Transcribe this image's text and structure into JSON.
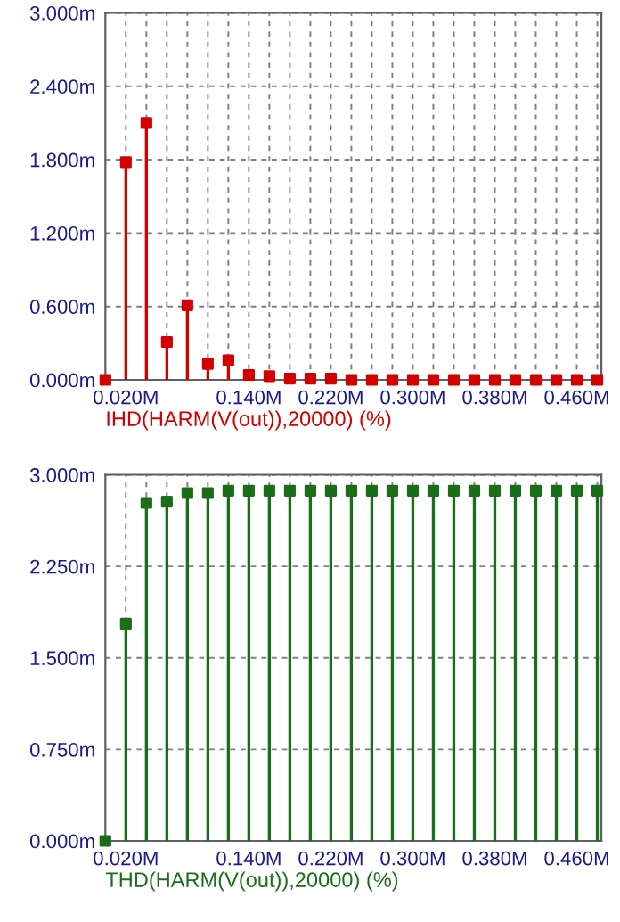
{
  "chart_data": [
    {
      "type": "lollipop",
      "xlabel": "IHD(HARM(V(out)),20000) (%)",
      "x": [
        0,
        0.02,
        0.04,
        0.06,
        0.08,
        0.1,
        0.12,
        0.14,
        0.16,
        0.18,
        0.2,
        0.22,
        0.24,
        0.26,
        0.28,
        0.3,
        0.32,
        0.34,
        0.36,
        0.38,
        0.4,
        0.42,
        0.44,
        0.46,
        0.48
      ],
      "series": [
        {
          "color": "#d40000",
          "values": [
            0,
            1.78,
            2.1,
            0.31,
            0.61,
            0.13,
            0.16,
            0.04,
            0.03,
            0.01,
            0.01,
            0.01,
            0,
            0,
            0,
            0,
            0,
            0,
            0,
            0,
            0,
            0,
            0,
            0,
            0
          ]
        }
      ],
      "marker": "square",
      "grid": true,
      "xlim": [
        0,
        0.484
      ],
      "ylim": [
        0,
        3
      ],
      "xticks": [
        {
          "value": 0.02,
          "label": "0.020M"
        },
        {
          "value": 0.04,
          "label": null
        },
        {
          "value": 0.06,
          "label": null
        },
        {
          "value": 0.08,
          "label": null
        },
        {
          "value": 0.1,
          "label": null
        },
        {
          "value": 0.12,
          "label": null
        },
        {
          "value": 0.14,
          "label": "0.140M"
        },
        {
          "value": 0.16,
          "label": null
        },
        {
          "value": 0.18,
          "label": null
        },
        {
          "value": 0.2,
          "label": null
        },
        {
          "value": 0.22,
          "label": "0.220M"
        },
        {
          "value": 0.24,
          "label": null
        },
        {
          "value": 0.26,
          "label": null
        },
        {
          "value": 0.28,
          "label": null
        },
        {
          "value": 0.3,
          "label": "0.300M"
        },
        {
          "value": 0.32,
          "label": null
        },
        {
          "value": 0.34,
          "label": null
        },
        {
          "value": 0.36,
          "label": null
        },
        {
          "value": 0.38,
          "label": "0.380M"
        },
        {
          "value": 0.4,
          "label": null
        },
        {
          "value": 0.42,
          "label": null
        },
        {
          "value": 0.44,
          "label": null
        },
        {
          "value": 0.46,
          "label": "0.460M"
        },
        {
          "value": 0.48,
          "label": null
        }
      ],
      "yticks": [
        {
          "value": 0,
          "label": "0.000m"
        },
        {
          "value": 0.6,
          "label": "0.600m"
        },
        {
          "value": 1.2,
          "label": "1.200m"
        },
        {
          "value": 1.8,
          "label": "1.800m"
        },
        {
          "value": 2.4,
          "label": "2.400m"
        },
        {
          "value": 3,
          "label": "3.000m"
        }
      ]
    },
    {
      "type": "lollipop",
      "xlabel": "THD(HARM(V(out)),20000) (%)",
      "x": [
        0,
        0.02,
        0.04,
        0.06,
        0.08,
        0.1,
        0.12,
        0.14,
        0.16,
        0.18,
        0.2,
        0.22,
        0.24,
        0.26,
        0.28,
        0.3,
        0.32,
        0.34,
        0.36,
        0.38,
        0.4,
        0.42,
        0.44,
        0.46,
        0.48
      ],
      "series": [
        {
          "color": "#1a6e1a",
          "values": [
            0,
            1.78,
            2.77,
            2.78,
            2.85,
            2.85,
            2.87,
            2.87,
            2.87,
            2.87,
            2.87,
            2.87,
            2.87,
            2.87,
            2.87,
            2.87,
            2.87,
            2.87,
            2.87,
            2.87,
            2.87,
            2.87,
            2.87,
            2.87,
            2.87
          ]
        }
      ],
      "marker": "square",
      "grid": true,
      "xlim": [
        0,
        0.484
      ],
      "ylim": [
        0,
        3
      ],
      "xticks": [
        {
          "value": 0.02,
          "label": "0.020M"
        },
        {
          "value": 0.04,
          "label": null
        },
        {
          "value": 0.06,
          "label": null
        },
        {
          "value": 0.08,
          "label": null
        },
        {
          "value": 0.1,
          "label": null
        },
        {
          "value": 0.12,
          "label": null
        },
        {
          "value": 0.14,
          "label": "0.140M"
        },
        {
          "value": 0.16,
          "label": null
        },
        {
          "value": 0.18,
          "label": null
        },
        {
          "value": 0.2,
          "label": null
        },
        {
          "value": 0.22,
          "label": "0.220M"
        },
        {
          "value": 0.24,
          "label": null
        },
        {
          "value": 0.26,
          "label": null
        },
        {
          "value": 0.28,
          "label": null
        },
        {
          "value": 0.3,
          "label": "0.300M"
        },
        {
          "value": 0.32,
          "label": null
        },
        {
          "value": 0.34,
          "label": null
        },
        {
          "value": 0.36,
          "label": null
        },
        {
          "value": 0.38,
          "label": "0.380M"
        },
        {
          "value": 0.4,
          "label": null
        },
        {
          "value": 0.42,
          "label": null
        },
        {
          "value": 0.44,
          "label": null
        },
        {
          "value": 0.46,
          "label": "0.460M"
        },
        {
          "value": 0.48,
          "label": null
        }
      ],
      "yticks": [
        {
          "value": 0,
          "label": "0.000m"
        },
        {
          "value": 0.75,
          "label": "0.750m"
        },
        {
          "value": 1.5,
          "label": "1.500m"
        },
        {
          "value": 2.25,
          "label": "2.250m"
        },
        {
          "value": 3,
          "label": "3.000m"
        }
      ]
    }
  ]
}
